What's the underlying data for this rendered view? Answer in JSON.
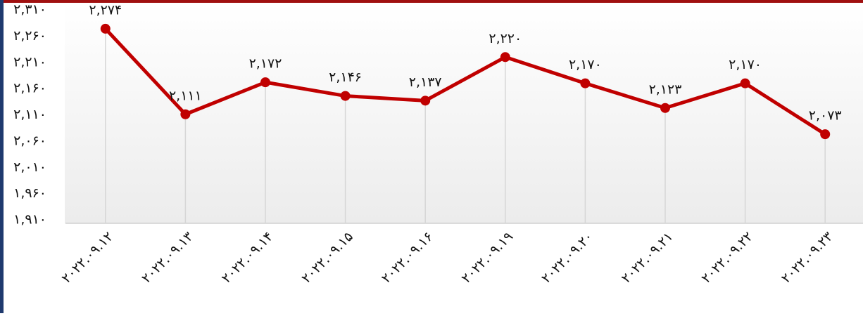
{
  "chart_data": {
    "type": "line",
    "categories": [
      "۲۰۲۲.۰۹.۱۲",
      "۲۰۲۲.۰۹.۱۳",
      "۲۰۲۲.۰۹.۱۴",
      "۲۰۲۲.۰۹.۱۵",
      "۲۰۲۲.۰۹.۱۶",
      "۲۰۲۲.۰۹.۱۹",
      "۲۰۲۲.۰۹.۲۰",
      "۲۰۲۲.۰۹.۲۱",
      "۲۰۲۲.۰۹.۲۲",
      "۲۰۲۲.۰۹.۲۳"
    ],
    "values": [
      2274,
      2111,
      2172,
      2146,
      2137,
      2220,
      2170,
      2123,
      2170,
      2073
    ],
    "value_labels": [
      "۲,۲۷۴",
      "۲,۱۱۱",
      "۲,۱۷۲",
      "۲,۱۴۶",
      "۲,۱۳۷",
      "۲,۲۲۰",
      "۲,۱۷۰",
      "۲,۱۲۳",
      "۲,۱۷۰",
      "۲,۰۷۳"
    ],
    "color": "#c00000",
    "ylim": [
      1910,
      2310
    ],
    "yticks": [
      {
        "value": 1910,
        "label": "۱,۹۱۰"
      },
      {
        "value": 1960,
        "label": "۱,۹۶۰"
      },
      {
        "value": 2010,
        "label": "۲,۰۱۰"
      },
      {
        "value": 2060,
        "label": "۲,۰۶۰"
      },
      {
        "value": 2110,
        "label": "۲,۱۱۰"
      },
      {
        "value": 2160,
        "label": "۲,۱۶۰"
      },
      {
        "value": 2210,
        "label": "۲,۲۱۰"
      },
      {
        "value": 2260,
        "label": "۲,۲۶۰"
      },
      {
        "value": 2310,
        "label": "۲,۳۱۰"
      }
    ]
  }
}
